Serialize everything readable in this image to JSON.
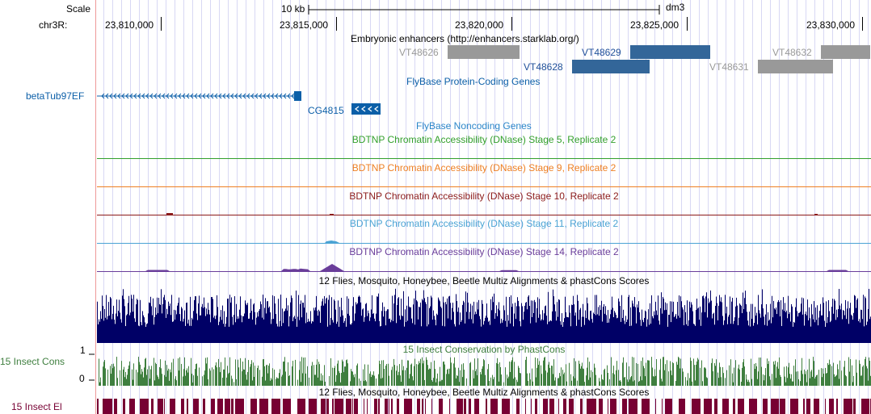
{
  "ruler": {
    "scale_label": "Scale",
    "scale_bar_label": "10 kb",
    "assembly": "dm3",
    "chrom_label": "chr3R:",
    "positions": [
      "23,810,000",
      "23,815,000",
      "23,820,000",
      "23,825,000",
      "23,830,000"
    ]
  },
  "tracks": {
    "enhancers": {
      "title": "Embryonic enhancers (http://enhancers.starklab.org/)",
      "items": [
        {
          "label": "VT48626",
          "color": "#999999",
          "label_color": "#999999"
        },
        {
          "label": "VT48629",
          "color": "#336699",
          "label_color": "#1f4f99"
        },
        {
          "label": "VT48628",
          "color": "#336699",
          "label_color": "#1f4f99"
        },
        {
          "label": "VT48631",
          "color": "#999999",
          "label_color": "#999999"
        },
        {
          "label": "VT48632",
          "color": "#999999",
          "label_color": "#999999"
        }
      ]
    },
    "protein_coding": {
      "title": "FlyBase Protein-Coding Genes",
      "color": "#0c5fa8",
      "genes": [
        {
          "label": "betaTub97EF",
          "strand": "<"
        },
        {
          "label": "CG4815",
          "strand": "<"
        }
      ]
    },
    "noncoding": {
      "title": "FlyBase Noncoding Genes",
      "color": "#2b86c9"
    },
    "dnase": [
      {
        "title": "BDTNP Chromatin Accessibility (DNase) Stage 5, Replicate 2",
        "color": "#33a02c"
      },
      {
        "title": "BDTNP Chromatin Accessibility (DNase) Stage 9, Replicate 2",
        "color": "#ee7f22"
      },
      {
        "title": "BDTNP Chromatin Accessibility (DNase) Stage 10, Replicate 2",
        "color": "#8b1a1a"
      },
      {
        "title": "BDTNP Chromatin Accessibility (DNase) Stage 11, Replicate 2",
        "color": "#4aa3d4"
      },
      {
        "title": "BDTNP Chromatin Accessibility (DNase) Stage 14, Replicate 2",
        "color": "#6a3d9a"
      }
    ],
    "multiz": {
      "title": "12 Flies, Mosquito, Honeybee, Beetle Multiz Alignments & phastCons Scores",
      "color": "#000066"
    },
    "insect_cons": {
      "title": "15 Insect Conservation by PhastCons",
      "side_label": "15 Insect Cons",
      "scale_max": "1",
      "scale_min": "0",
      "color": "#3f7f3f"
    },
    "insect_el": {
      "title": "12 Flies, Mosquito, Honeybee, Beetle Multiz Alignments & phastCons Scores",
      "side_label": "15 Insect El",
      "color": "#770033"
    }
  }
}
